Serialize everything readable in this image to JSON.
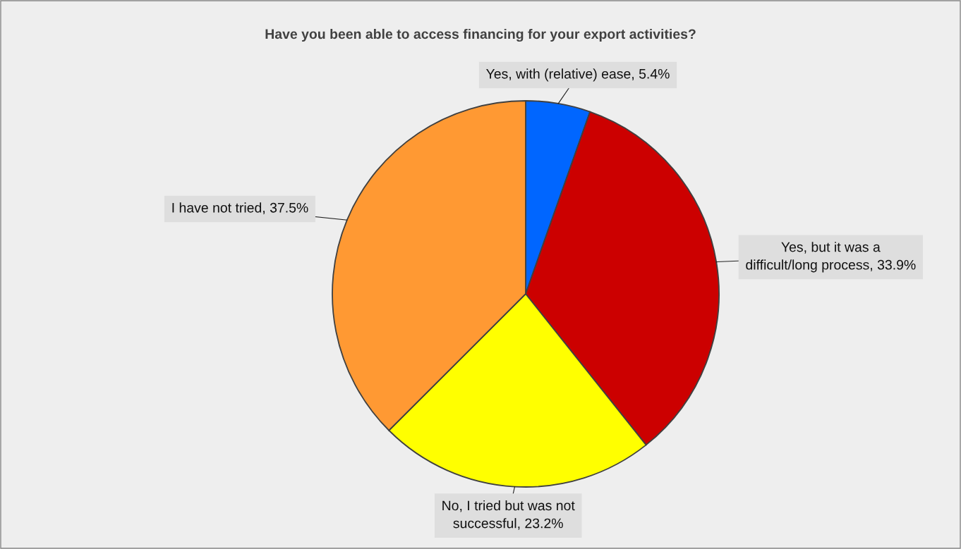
{
  "chart_data": {
    "type": "pie",
    "title": "Have you been able to access financing for your export activities?",
    "categories": [
      "Yes, with (relative) ease",
      "Yes, but it was a\ndifficult/long process",
      "No, I tried but was not\nsuccessful",
      "I have not tried"
    ],
    "values": [
      5.4,
      33.9,
      23.2,
      37.5
    ],
    "colors": [
      "#0066ff",
      "#cc0000",
      "#ffff00",
      "#ff9933"
    ],
    "value_labels": [
      "5.4%",
      "33.9%",
      "23.2%",
      "37.5%"
    ],
    "legend": false
  }
}
